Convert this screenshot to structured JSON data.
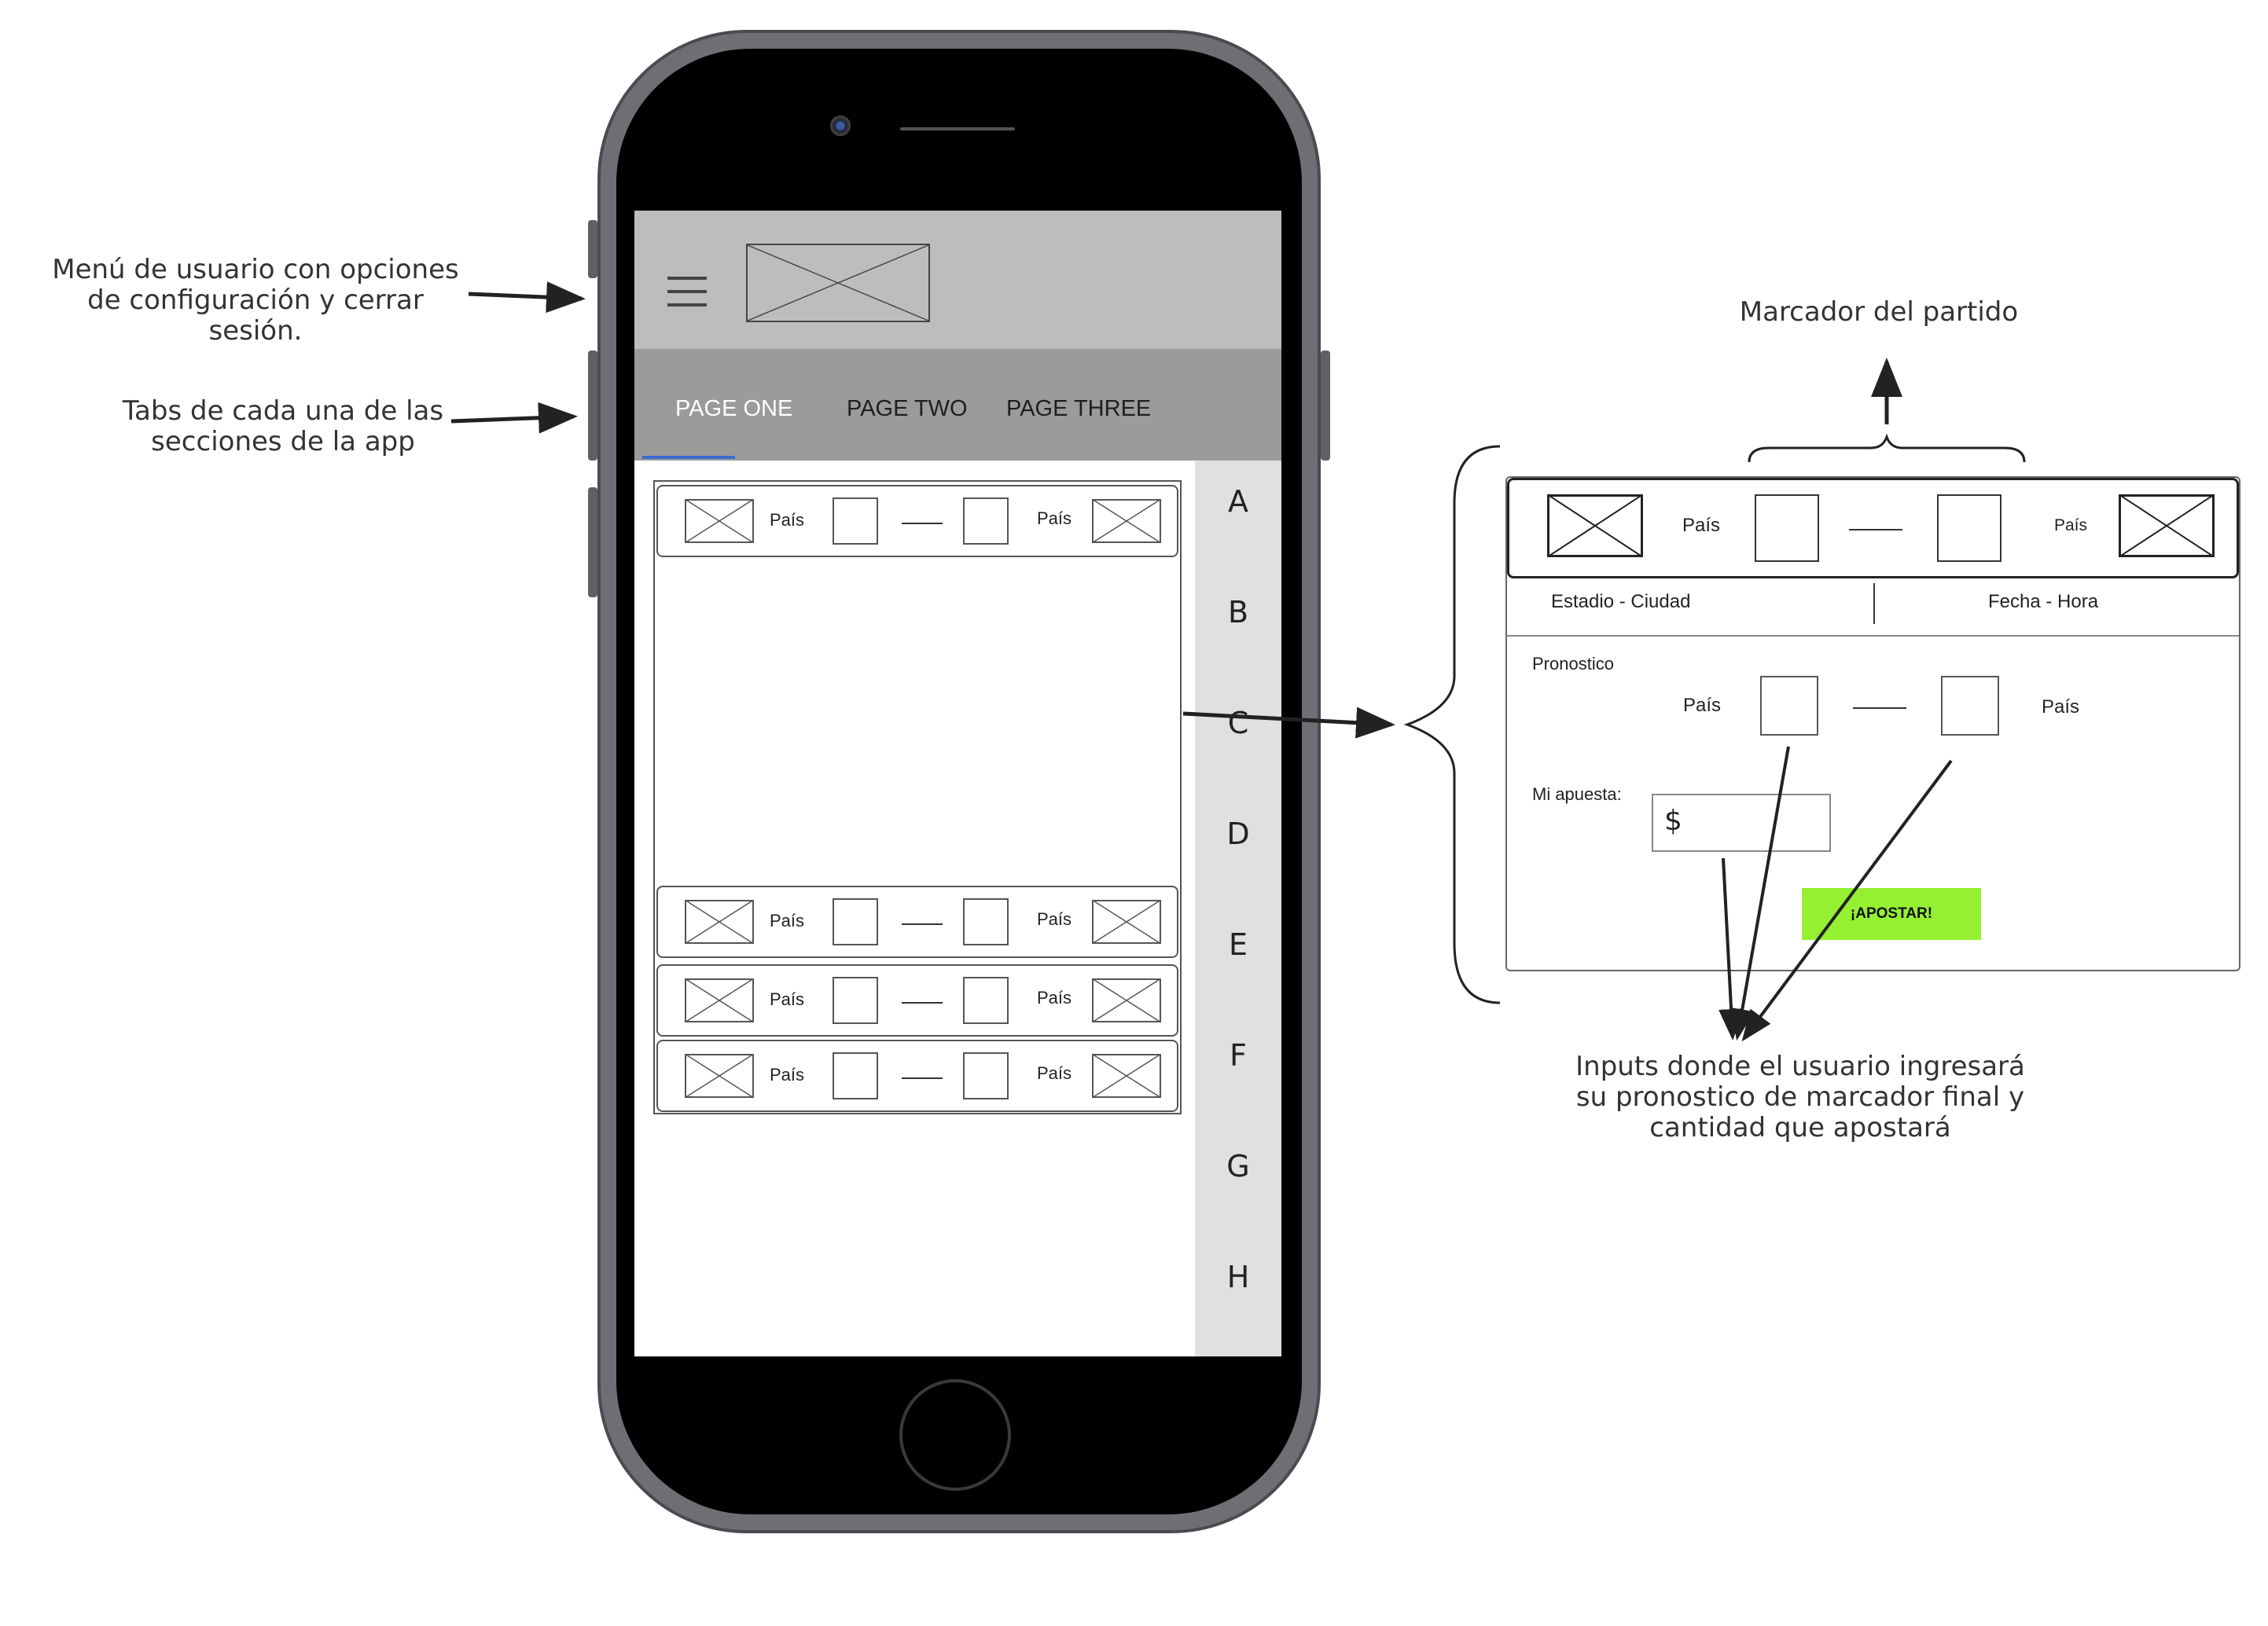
{
  "annotations": {
    "menu": "Menú de usuario con opciones de configuración y cerrar sesión.",
    "tabs": "Tabs de cada una de las secciones de la app",
    "marcador": "Marcador del partido",
    "inputs": "Inputs donde el usuario ingresará su pronostico de marcador final y cantidad que apostará"
  },
  "phone": {
    "tabs": [
      "PAGE ONE",
      "PAGE TWO",
      "PAGE THREE"
    ],
    "alphabet": [
      "A",
      "B",
      "C",
      "D",
      "E",
      "F",
      "G",
      "H"
    ],
    "matches": [
      {
        "home": "País",
        "away": "País"
      },
      {
        "home": "País",
        "away": "País"
      },
      {
        "home": "País",
        "away": "País"
      },
      {
        "home": "País",
        "away": "País"
      }
    ]
  },
  "detail": {
    "home": "País",
    "away": "País",
    "venue": "Estadio - Ciudad",
    "datetime": "Fecha - Hora",
    "pronostico_label": "Pronostico",
    "pron_home": "País",
    "pron_away": "País",
    "apuesta_label": "Mi apuesta:",
    "bet_placeholder": "$",
    "bet_button": "¡APOSTAR!"
  },
  "colors": {
    "appbar": "#bdbdbd",
    "tabbar": "#9b9b9b",
    "tab_indicator": "#3b6ccf",
    "bet_button": "#95f032"
  }
}
